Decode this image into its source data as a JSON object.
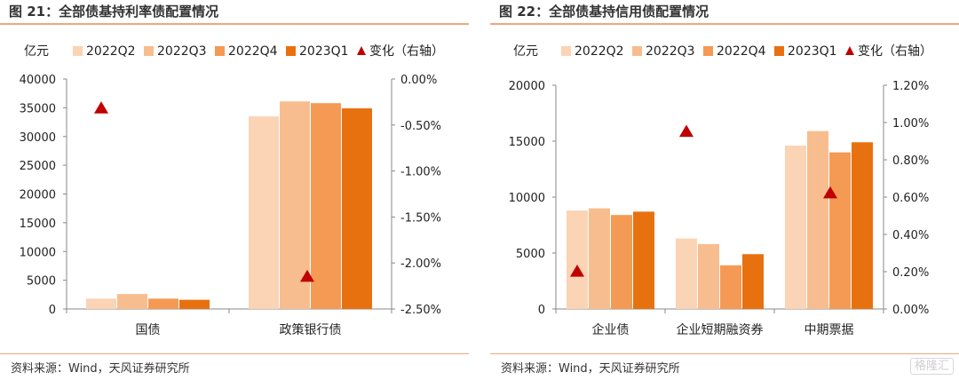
{
  "charts": [
    {
      "figure_title": "图 21：全部债基持利率债配置情况",
      "source": "资料来源：Wind，天风证券研究所"
    },
    {
      "figure_title": "图 22：全部债基持信用债配置情况",
      "source": "资料来源：Wind，天风证券研究所"
    }
  ],
  "watermark": "格隆汇",
  "chart_data": [
    {
      "type": "bar",
      "title": "图 21：全部债基持利率债配置情况",
      "ylabel": "亿元",
      "categories": [
        "国债",
        "政策银行债"
      ],
      "ylim": [
        0,
        40000
      ],
      "y_ticks": [
        "0",
        "5000",
        "10000",
        "15000",
        "20000",
        "25000",
        "30000",
        "35000",
        "40000"
      ],
      "y2lim": [
        -2.5,
        0
      ],
      "y2_ticks": [
        "0.00%",
        "-0.50%",
        "-1.00%",
        "-1.50%",
        "-2.00%",
        "-2.50%"
      ],
      "legend_position": "top",
      "series": [
        {
          "name": "2022Q2",
          "color": "#fbd3b5",
          "values": [
            1800,
            33500
          ]
        },
        {
          "name": "2022Q3",
          "color": "#f8bd8e",
          "values": [
            2600,
            36100
          ]
        },
        {
          "name": "2022Q4",
          "color": "#f49a54",
          "values": [
            1800,
            35800
          ]
        },
        {
          "name": "2023Q1",
          "color": "#e8710f",
          "values": [
            1600,
            34900
          ]
        }
      ],
      "markers": {
        "name": "变化（右轴）",
        "color": "#c00000",
        "values": [
          -0.32,
          -2.15
        ],
        "unit": "%"
      }
    },
    {
      "type": "bar",
      "title": "图 22：全部债基持信用债配置情况",
      "ylabel": "亿元",
      "categories": [
        "企业债",
        "企业短期融资券",
        "中期票据"
      ],
      "ylim": [
        0,
        20000
      ],
      "y_ticks": [
        "0",
        "5000",
        "10000",
        "15000",
        "20000"
      ],
      "y2lim": [
        0,
        1.2
      ],
      "y2_ticks": [
        "0.00%",
        "0.20%",
        "0.40%",
        "0.60%",
        "0.80%",
        "1.00%",
        "1.20%"
      ],
      "legend_position": "top",
      "series": [
        {
          "name": "2022Q2",
          "color": "#fbd3b5",
          "values": [
            8800,
            6300,
            14600
          ]
        },
        {
          "name": "2022Q3",
          "color": "#f8bd8e",
          "values": [
            9000,
            5800,
            15900
          ]
        },
        {
          "name": "2022Q4",
          "color": "#f49a54",
          "values": [
            8400,
            3900,
            14000
          ]
        },
        {
          "name": "2023Q1",
          "color": "#e8710f",
          "values": [
            8700,
            4900,
            14900
          ]
        }
      ],
      "markers": {
        "name": "变化（右轴）",
        "color": "#c00000",
        "values": [
          0.2,
          0.95,
          0.62
        ],
        "unit": "%"
      }
    }
  ]
}
